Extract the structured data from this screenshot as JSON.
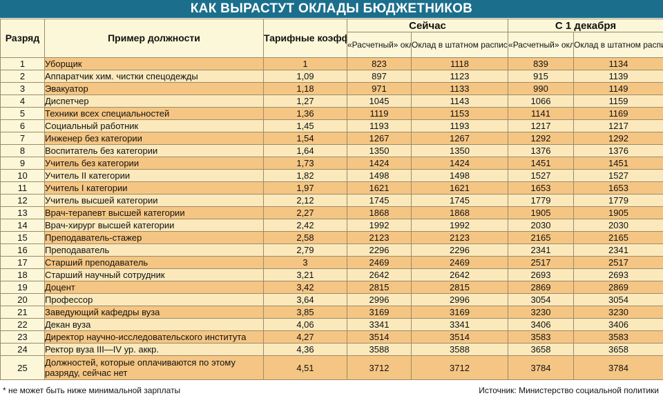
{
  "title": "КАК ВЫРАСТУТ ОКЛАДЫ БЮДЖЕТНИКОВ",
  "headers": {
    "rank": "Разряд",
    "position": "Пример должности",
    "coef": "Тарифные коэффициенты",
    "now": "Сейчас",
    "dec": "С 1 декабря",
    "calc": "«Расчетный» оклад",
    "staff": "Оклад в штатном расписании*"
  },
  "rows": [
    {
      "rank": "1",
      "position": "Уборщик",
      "coef": "1",
      "now_calc": "823",
      "now_staff": "1118",
      "dec_calc": "839",
      "dec_staff": "1134"
    },
    {
      "rank": "2",
      "position": "Аппаратчик хим. чистки спецодежды",
      "coef": "1,09",
      "now_calc": "897",
      "now_staff": "1123",
      "dec_calc": "915",
      "dec_staff": "1139"
    },
    {
      "rank": "3",
      "position": "Эвакуатор",
      "coef": "1,18",
      "now_calc": "971",
      "now_staff": "1133",
      "dec_calc": "990",
      "dec_staff": "1149"
    },
    {
      "rank": "4",
      "position": "Диспетчер",
      "coef": "1,27",
      "now_calc": "1045",
      "now_staff": "1143",
      "dec_calc": "1066",
      "dec_staff": "1159"
    },
    {
      "rank": "5",
      "position": "Техники всех специальностей",
      "coef": "1,36",
      "now_calc": "1119",
      "now_staff": "1153",
      "dec_calc": "1141",
      "dec_staff": "1169"
    },
    {
      "rank": "6",
      "position": "Социальный работник",
      "coef": "1,45",
      "now_calc": "1193",
      "now_staff": "1193",
      "dec_calc": "1217",
      "dec_staff": "1217"
    },
    {
      "rank": "7",
      "position": "Инженер без категории",
      "coef": "1,54",
      "now_calc": "1267",
      "now_staff": "1267",
      "dec_calc": "1292",
      "dec_staff": "1292"
    },
    {
      "rank": "8",
      "position": "Воспитатель без категории",
      "coef": "1,64",
      "now_calc": "1350",
      "now_staff": "1350",
      "dec_calc": "1376",
      "dec_staff": "1376"
    },
    {
      "rank": "9",
      "position": "Учитель без категории",
      "coef": "1,73",
      "now_calc": "1424",
      "now_staff": "1424",
      "dec_calc": "1451",
      "dec_staff": "1451"
    },
    {
      "rank": "10",
      "position": "Учитель II категории",
      "coef": "1,82",
      "now_calc": "1498",
      "now_staff": "1498",
      "dec_calc": "1527",
      "dec_staff": "1527"
    },
    {
      "rank": "11",
      "position": "Учитель I категории",
      "coef": "1,97",
      "now_calc": "1621",
      "now_staff": "1621",
      "dec_calc": "1653",
      "dec_staff": "1653"
    },
    {
      "rank": "12",
      "position": "Учитель высшей категории",
      "coef": "2,12",
      "now_calc": "1745",
      "now_staff": "1745",
      "dec_calc": "1779",
      "dec_staff": "1779"
    },
    {
      "rank": "13",
      "position": "Врач-терапевт высшей категории",
      "coef": "2,27",
      "now_calc": "1868",
      "now_staff": "1868",
      "dec_calc": "1905",
      "dec_staff": "1905"
    },
    {
      "rank": "14",
      "position": "Врач-хирург высшей категории",
      "coef": "2,42",
      "now_calc": "1992",
      "now_staff": "1992",
      "dec_calc": "2030",
      "dec_staff": "2030"
    },
    {
      "rank": "15",
      "position": "Преподаватель-стажер",
      "coef": "2,58",
      "now_calc": "2123",
      "now_staff": "2123",
      "dec_calc": "2165",
      "dec_staff": "2165"
    },
    {
      "rank": "16",
      "position": "Преподаватель",
      "coef": "2,79",
      "now_calc": "2296",
      "now_staff": "2296",
      "dec_calc": "2341",
      "dec_staff": "2341"
    },
    {
      "rank": "17",
      "position": "Старший преподаватель",
      "coef": "3",
      "now_calc": "2469",
      "now_staff": "2469",
      "dec_calc": "2517",
      "dec_staff": "2517"
    },
    {
      "rank": "18",
      "position": "Старший научный сотрудник",
      "coef": "3,21",
      "now_calc": "2642",
      "now_staff": "2642",
      "dec_calc": "2693",
      "dec_staff": "2693"
    },
    {
      "rank": "19",
      "position": "Доцент",
      "coef": "3,42",
      "now_calc": "2815",
      "now_staff": "2815",
      "dec_calc": "2869",
      "dec_staff": "2869"
    },
    {
      "rank": "20",
      "position": "Профессор",
      "coef": "3,64",
      "now_calc": "2996",
      "now_staff": "2996",
      "dec_calc": "3054",
      "dec_staff": "3054"
    },
    {
      "rank": "21",
      "position": "Заведующий кафедры вуза",
      "coef": "3,85",
      "now_calc": "3169",
      "now_staff": "3169",
      "dec_calc": "3230",
      "dec_staff": "3230"
    },
    {
      "rank": "22",
      "position": "Декан вуза",
      "coef": "4,06",
      "now_calc": "3341",
      "now_staff": "3341",
      "dec_calc": "3406",
      "dec_staff": "3406"
    },
    {
      "rank": "23",
      "position": "Директор научно-исследовательского института",
      "coef": "4,27",
      "now_calc": "3514",
      "now_staff": "3514",
      "dec_calc": "3583",
      "dec_staff": "3583"
    },
    {
      "rank": "24",
      "position": "Ректор вуза III—IV ур. аккр.",
      "coef": "4,36",
      "now_calc": "3588",
      "now_staff": "3588",
      "dec_calc": "3658",
      "dec_staff": "3658"
    },
    {
      "rank": "25",
      "position": "Должностей, которые оплачиваются по этому разряду, сейчас нет",
      "coef": "4,51",
      "now_calc": "3712",
      "now_staff": "3712",
      "dec_calc": "3784",
      "dec_staff": "3784"
    }
  ],
  "footnote": "* не может быть ниже минимальной зарплаты",
  "source": "Источник: Министерство социальной политики"
}
